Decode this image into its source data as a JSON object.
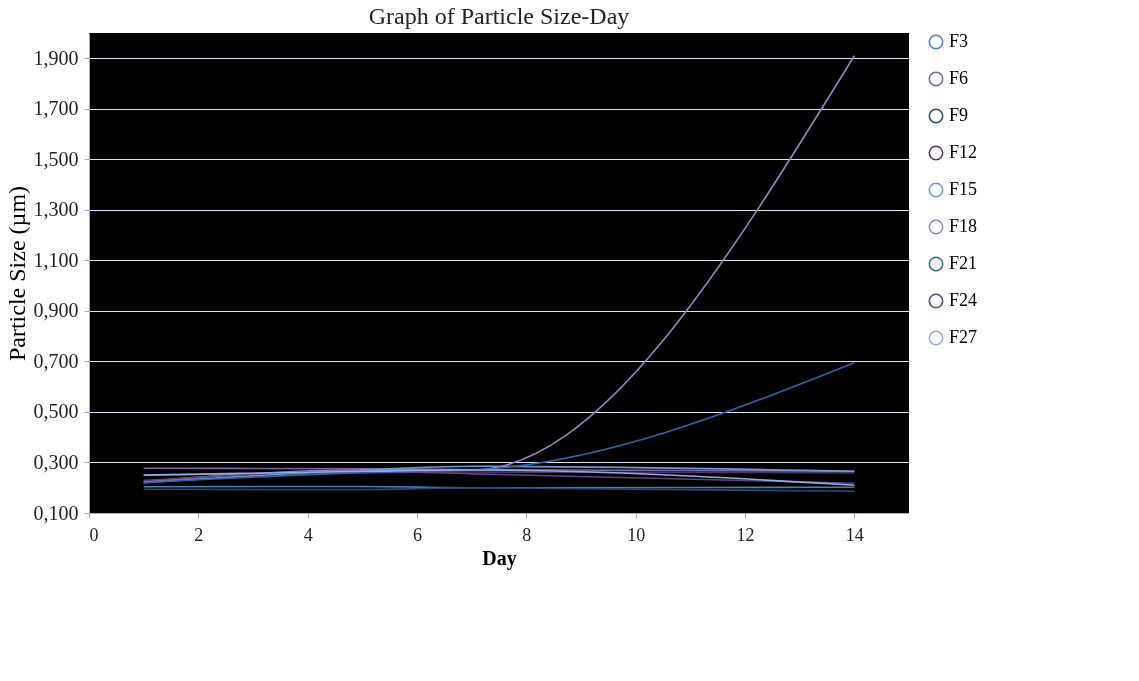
{
  "chart_data": {
    "type": "line",
    "title": "Graph of Particle Size-Day",
    "xlabel": "Day",
    "ylabel": "Particle Size (µm)",
    "x": [
      1,
      5,
      7,
      14
    ],
    "xlim": [
      0,
      15
    ],
    "xticks": [
      0,
      2,
      4,
      6,
      8,
      10,
      12,
      14
    ],
    "ylim": [
      0.1,
      2.0
    ],
    "yticks": [
      {
        "value": 0.1,
        "label": "0,100"
      },
      {
        "value": 0.3,
        "label": "0,300"
      },
      {
        "value": 0.5,
        "label": "0,500"
      },
      {
        "value": 0.7,
        "label": "0,700"
      },
      {
        "value": 0.9,
        "label": "0,900"
      },
      {
        "value": 1.1,
        "label": "1,100"
      },
      {
        "value": 1.3,
        "label": "1,300"
      },
      {
        "value": 1.5,
        "label": "1,500"
      },
      {
        "value": 1.7,
        "label": "1,700"
      },
      {
        "value": 1.9,
        "label": "1,900"
      }
    ],
    "grid": "y",
    "legend": "right",
    "line_style": "solid",
    "series": [
      {
        "name": "F3",
        "color": "#4a7ebb",
        "values": [
          0.204,
          0.205,
          0.2,
          0.202
        ]
      },
      {
        "name": "F6",
        "color": "#7f60a8",
        "values": [
          0.277,
          0.275,
          0.272,
          0.265
        ]
      },
      {
        "name": "F9",
        "color": "#254a7a",
        "values": [
          0.194,
          0.193,
          0.2,
          0.186
        ]
      },
      {
        "name": "F12",
        "color": "#4a3562",
        "values": [
          0.25,
          0.26,
          0.262,
          0.259
        ]
      },
      {
        "name": "F15",
        "color": "#6a9ad6",
        "values": [
          0.22,
          0.27,
          0.285,
          0.265
        ]
      },
      {
        "name": "F18",
        "color": "#9a82c0",
        "values": [
          0.225,
          0.27,
          0.27,
          1.91
        ]
      },
      {
        "name": "F21",
        "color": "#2f65a5",
        "values": [
          0.22,
          0.26,
          0.27,
          0.695
        ]
      },
      {
        "name": "F24",
        "color": "#5e4285",
        "values": [
          0.228,
          0.265,
          0.255,
          0.218
        ]
      },
      {
        "name": "F27",
        "color": "#8eaedb",
        "values": [
          0.25,
          0.265,
          0.27,
          0.21
        ]
      }
    ]
  }
}
